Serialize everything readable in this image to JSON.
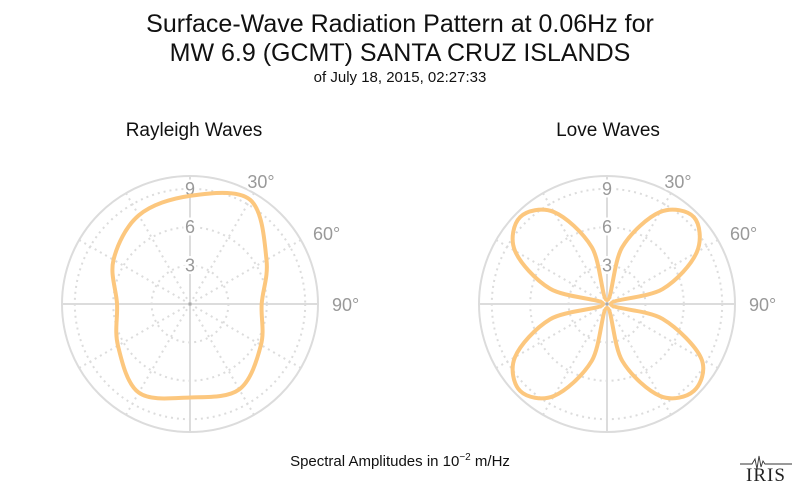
{
  "title": {
    "line1": "Surface-Wave Radiation Pattern at 0.06Hz for",
    "line2": "MW 6.9 (GCMT) SANTA CRUZ ISLANDS",
    "subtitle": "of July 18, 2015, 02:27:33"
  },
  "footer": {
    "label_prefix": "Spectral Amplitudes in ",
    "label_base": "10",
    "label_exponent": "−2",
    "label_suffix": " m/Hz"
  },
  "logo": {
    "text": "IRIS"
  },
  "colors": {
    "pattern": "#fcc77e",
    "grid": "#dcdcdc",
    "tick_text": "#999999"
  },
  "chart_data": [
    {
      "type": "polar-line",
      "title": "Rayleigh Waves",
      "r_ticks": [
        "3",
        "6",
        "9"
      ],
      "theta_ticks": [
        "30°",
        "60°",
        "90°"
      ],
      "r_max": 10,
      "theta_unit": "degrees, clockwise from north",
      "series": [
        {
          "theta": [
            0,
            30,
            60,
            90,
            120,
            150,
            180,
            210,
            240,
            270,
            300,
            330
          ],
          "r": [
            8.45,
            9.4,
            6.9,
            5.6,
            6.4,
            7.7,
            7.3,
            8.0,
            6.5,
            5.7,
            6.9,
            8.0
          ]
        }
      ]
    },
    {
      "type": "polar-line",
      "title": "Love Waves",
      "r_ticks": [
        "3",
        "6",
        "9"
      ],
      "theta_ticks": [
        "30°",
        "60°",
        "90°"
      ],
      "r_max": 10,
      "theta_unit": "degrees, clockwise from north",
      "series": [
        {
          "theta": [
            0,
            15,
            30,
            45,
            60,
            75,
            90,
            105,
            120,
            135,
            150,
            165,
            180,
            195,
            210,
            225,
            240,
            255,
            270,
            285,
            300,
            315,
            330,
            345
          ],
          "r": [
            0.3,
            4.6,
            8.3,
            9.6,
            8.1,
            4.5,
            0.3,
            4.5,
            8.5,
            9.6,
            8.3,
            4.6,
            0.3,
            4.6,
            8.3,
            9.6,
            8.3,
            4.6,
            0.3,
            4.6,
            8.3,
            9.6,
            8.3,
            4.6
          ]
        }
      ]
    }
  ]
}
